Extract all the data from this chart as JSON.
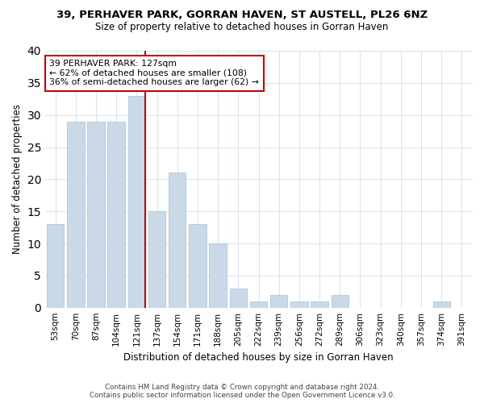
{
  "title": "39, PERHAVER PARK, GORRAN HAVEN, ST AUSTELL, PL26 6NZ",
  "subtitle": "Size of property relative to detached houses in Gorran Haven",
  "xlabel": "Distribution of detached houses by size in Gorran Haven",
  "ylabel": "Number of detached properties",
  "bar_color": "#c9d9e8",
  "bar_edgecolor": "#a8bfd0",
  "grid_color": "#c8d8e8",
  "bins": [
    "53sqm",
    "70sqm",
    "87sqm",
    "104sqm",
    "121sqm",
    "137sqm",
    "154sqm",
    "171sqm",
    "188sqm",
    "205sqm",
    "222sqm",
    "239sqm",
    "256sqm",
    "272sqm",
    "289sqm",
    "306sqm",
    "323sqm",
    "340sqm",
    "357sqm",
    "374sqm",
    "391sqm"
  ],
  "values": [
    13,
    29,
    29,
    29,
    33,
    15,
    21,
    13,
    10,
    3,
    1,
    2,
    1,
    1,
    2,
    0,
    0,
    0,
    0,
    1,
    0
  ],
  "vline_bin_index": 4,
  "annotation_line1": "39 PERHAVER PARK: 127sqm",
  "annotation_line2": "← 62% of detached houses are smaller (108)",
  "annotation_line3": "36% of semi-detached houses are larger (62) →",
  "vline_color": "#cc0000",
  "annotation_box_edgecolor": "#cc0000",
  "ylim": [
    0,
    40
  ],
  "yticks": [
    0,
    5,
    10,
    15,
    20,
    25,
    30,
    35,
    40
  ],
  "footer_line1": "Contains HM Land Registry data © Crown copyright and database right 2024.",
  "footer_line2": "Contains public sector information licensed under the Open Government Licence v3.0."
}
